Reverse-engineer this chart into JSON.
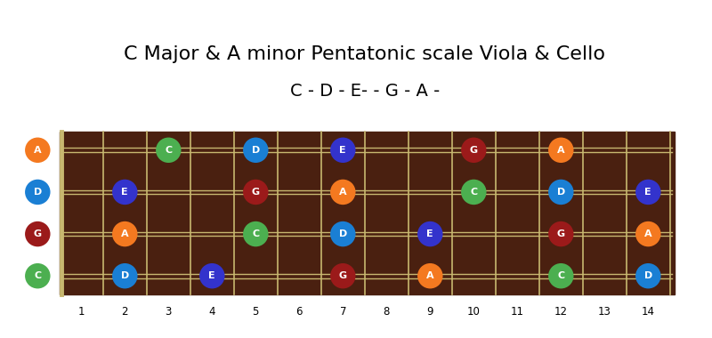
{
  "title": "C Major & A minor Pentatonic scale Viola & Cello",
  "subtitle": "C - D - E- - G - A -",
  "bg_color": "#ffffff",
  "fretboard_color": "#4a2010",
  "fret_color": "#c8b870",
  "string_color": "#c8b870",
  "num_frets": 14,
  "num_strings": 4,
  "open_strings": [
    {
      "string": 3,
      "note": "A",
      "color": "#f47920"
    },
    {
      "string": 2,
      "note": "D",
      "color": "#1a7fd4"
    },
    {
      "string": 1,
      "note": "G",
      "color": "#9b1a1a"
    },
    {
      "string": 0,
      "note": "C",
      "color": "#4caf50"
    }
  ],
  "notes": [
    {
      "fret": 3,
      "string": 3,
      "note": "C",
      "color": "#4caf50"
    },
    {
      "fret": 5,
      "string": 3,
      "note": "D",
      "color": "#1a7fd4"
    },
    {
      "fret": 7,
      "string": 3,
      "note": "E",
      "color": "#3333cc"
    },
    {
      "fret": 10,
      "string": 3,
      "note": "G",
      "color": "#9b1a1a"
    },
    {
      "fret": 12,
      "string": 3,
      "note": "A",
      "color": "#f47920"
    },
    {
      "fret": 2,
      "string": 2,
      "note": "E",
      "color": "#3333cc"
    },
    {
      "fret": 5,
      "string": 2,
      "note": "G",
      "color": "#9b1a1a"
    },
    {
      "fret": 7,
      "string": 2,
      "note": "A",
      "color": "#f47920"
    },
    {
      "fret": 10,
      "string": 2,
      "note": "C",
      "color": "#4caf50"
    },
    {
      "fret": 12,
      "string": 2,
      "note": "D",
      "color": "#1a7fd4"
    },
    {
      "fret": 14,
      "string": 2,
      "note": "E",
      "color": "#3333cc"
    },
    {
      "fret": 2,
      "string": 1,
      "note": "A",
      "color": "#f47920"
    },
    {
      "fret": 5,
      "string": 1,
      "note": "C",
      "color": "#4caf50"
    },
    {
      "fret": 7,
      "string": 1,
      "note": "D",
      "color": "#1a7fd4"
    },
    {
      "fret": 9,
      "string": 1,
      "note": "E",
      "color": "#3333cc"
    },
    {
      "fret": 12,
      "string": 1,
      "note": "G",
      "color": "#9b1a1a"
    },
    {
      "fret": 14,
      "string": 1,
      "note": "A",
      "color": "#f47920"
    },
    {
      "fret": 2,
      "string": 0,
      "note": "D",
      "color": "#1a7fd4"
    },
    {
      "fret": 4,
      "string": 0,
      "note": "E",
      "color": "#3333cc"
    },
    {
      "fret": 7,
      "string": 0,
      "note": "G",
      "color": "#9b1a1a"
    },
    {
      "fret": 9,
      "string": 0,
      "note": "A",
      "color": "#f47920"
    },
    {
      "fret": 12,
      "string": 0,
      "note": "C",
      "color": "#4caf50"
    },
    {
      "fret": 14,
      "string": 0,
      "note": "D",
      "color": "#1a7fd4"
    }
  ],
  "fret_labels": [
    1,
    2,
    3,
    4,
    5,
    6,
    7,
    8,
    9,
    10,
    11,
    12,
    13,
    14
  ],
  "title_fontsize": 16,
  "subtitle_fontsize": 14
}
